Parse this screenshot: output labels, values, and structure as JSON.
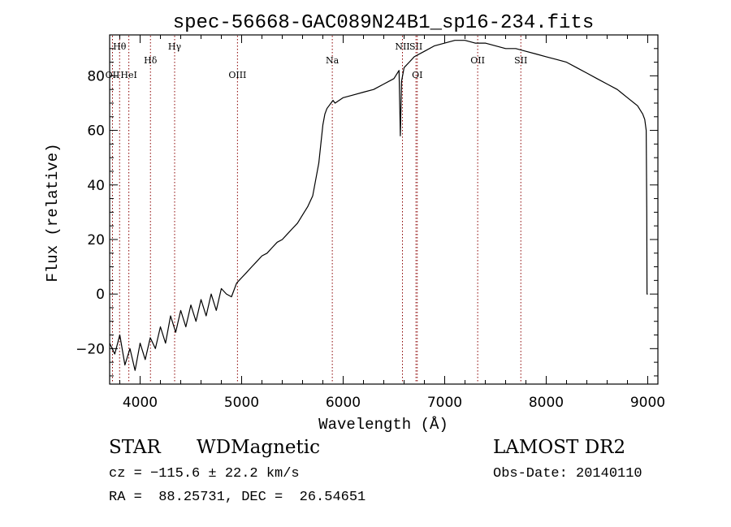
{
  "chart_data": {
    "type": "line",
    "title": "spec-56668-GAC089N24B1_sp16-234.fits",
    "xlabel": "Wavelength (Å)",
    "ylabel": "Flux (relative)",
    "xlim": [
      3700,
      9100
    ],
    "ylim": [
      -33,
      95
    ],
    "x_ticks": [
      4000,
      5000,
      6000,
      7000,
      8000,
      9000
    ],
    "y_ticks": [
      -20,
      0,
      20,
      40,
      60,
      80
    ],
    "grid": false,
    "legend": "none",
    "line_color": "#000000",
    "marker_color": "#8b0000",
    "series": [
      {
        "x": [
          3700,
          3750,
          3800,
          3850,
          3900,
          3950,
          4000,
          4050,
          4100,
          4150,
          4200,
          4250,
          4300,
          4350,
          4400,
          4450,
          4500,
          4550,
          4600,
          4650,
          4700,
          4750,
          4800,
          4850,
          4900,
          4950,
          5000,
          5050,
          5100,
          5150,
          5200,
          5250,
          5300,
          5350,
          5400,
          5450,
          5500,
          5550,
          5600,
          5650,
          5700,
          5720,
          5740,
          5760,
          5780,
          5800,
          5820,
          5840,
          5860,
          5880,
          5900,
          5920,
          6000,
          6100,
          6200,
          6300,
          6400,
          6500,
          6550,
          6563,
          6575,
          6600,
          6650,
          6700,
          6800,
          6900,
          7000,
          7100,
          7200,
          7300,
          7400,
          7500,
          7600,
          7700,
          7800,
          7900,
          8000,
          8100,
          8200,
          8300,
          8400,
          8500,
          8600,
          8700,
          8800,
          8900,
          8950,
          8970,
          8985,
          8990,
          8993,
          8995,
          9000
        ],
        "y": [
          -18,
          -22,
          -15,
          -26,
          -20,
          -28,
          -18,
          -24,
          -16,
          -20,
          -12,
          -18,
          -8,
          -14,
          -6,
          -12,
          -4,
          -10,
          -2,
          -8,
          0,
          -6,
          2,
          0,
          -1,
          4,
          6,
          8,
          10,
          12,
          14,
          15,
          17,
          19,
          20,
          22,
          24,
          26,
          29,
          32,
          36,
          40,
          44,
          48,
          55,
          62,
          66,
          68,
          69,
          70,
          71,
          70,
          72,
          73,
          74,
          75,
          77,
          79,
          82,
          58,
          78,
          83,
          85,
          87,
          89,
          91,
          92,
          93,
          93,
          92,
          92,
          91,
          90,
          90,
          89,
          88,
          87,
          86,
          85,
          83,
          81,
          79,
          77,
          75,
          72,
          69,
          66,
          64,
          60,
          30,
          0,
          0,
          0
        ]
      }
    ],
    "lines": [
      {
        "label": "Hθ",
        "x": 3798,
        "row": 1
      },
      {
        "label": "OII",
        "x": 3728,
        "row": 2
      },
      {
        "label": "HeI",
        "x": 3889,
        "row": 2
      },
      {
        "label": "Hδ",
        "x": 4102,
        "row": 3
      },
      {
        "label": "Hγ",
        "x": 4340,
        "row": 1
      },
      {
        "label": "OIII",
        "x": 4959,
        "row": 2
      },
      {
        "label": "Na",
        "x": 5893,
        "row": 3
      },
      {
        "label": "NII",
        "x": 6584,
        "row": 1
      },
      {
        "label": "SII",
        "x": 6717,
        "row": 1
      },
      {
        "label": "OI",
        "x": 6730,
        "row": 2
      },
      {
        "label": "OII",
        "x": 7325,
        "row": 3
      },
      {
        "label": "SII",
        "x": 7750,
        "row": 3
      }
    ]
  },
  "info": {
    "class": "STAR",
    "subclass": "WDMagnetic",
    "survey": "LAMOST DR2",
    "cz": "cz = −115.6 ± 22.2 km/s",
    "obs_date": "Obs-Date: 20140110",
    "coords": "RA =  88.25731, DEC =  26.54651"
  }
}
